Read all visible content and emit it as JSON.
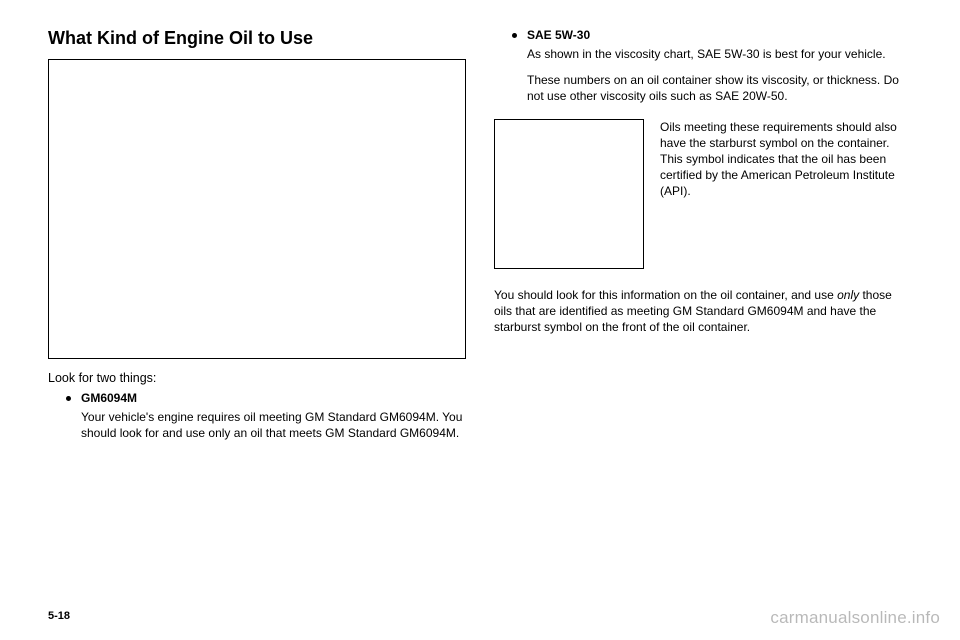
{
  "left": {
    "heading": "What Kind of Engine Oil to Use",
    "lead": "Look for two things:",
    "bullet1_label": "GM6094M",
    "bullet1_body": "Your vehicle's engine requires oil meeting GM Standard GM6094M. You should look for and use only an oil that meets GM Standard GM6094M."
  },
  "right": {
    "bullet2_label": "SAE 5W-30",
    "bullet2_body_p1": "As shown in the viscosity chart, SAE 5W-30 is best for your vehicle.",
    "bullet2_body_p2": "These numbers on an oil container show its viscosity, or thickness. Do not use other viscosity oils such as SAE 20W-50.",
    "side_text": "Oils meeting these requirements should also have the starburst symbol on the container. This symbol indicates that the oil has been certified by the American Petroleum Institute (API).",
    "closing_p1": "You should look for this information on the oil container, and use ",
    "closing_italic": "only",
    "closing_p2": " those oils that are identified as meeting GM Standard GM6094M and have the starburst symbol on the front of the oil container."
  },
  "page_num": "5-18",
  "watermark": "carmanualsonline.info"
}
